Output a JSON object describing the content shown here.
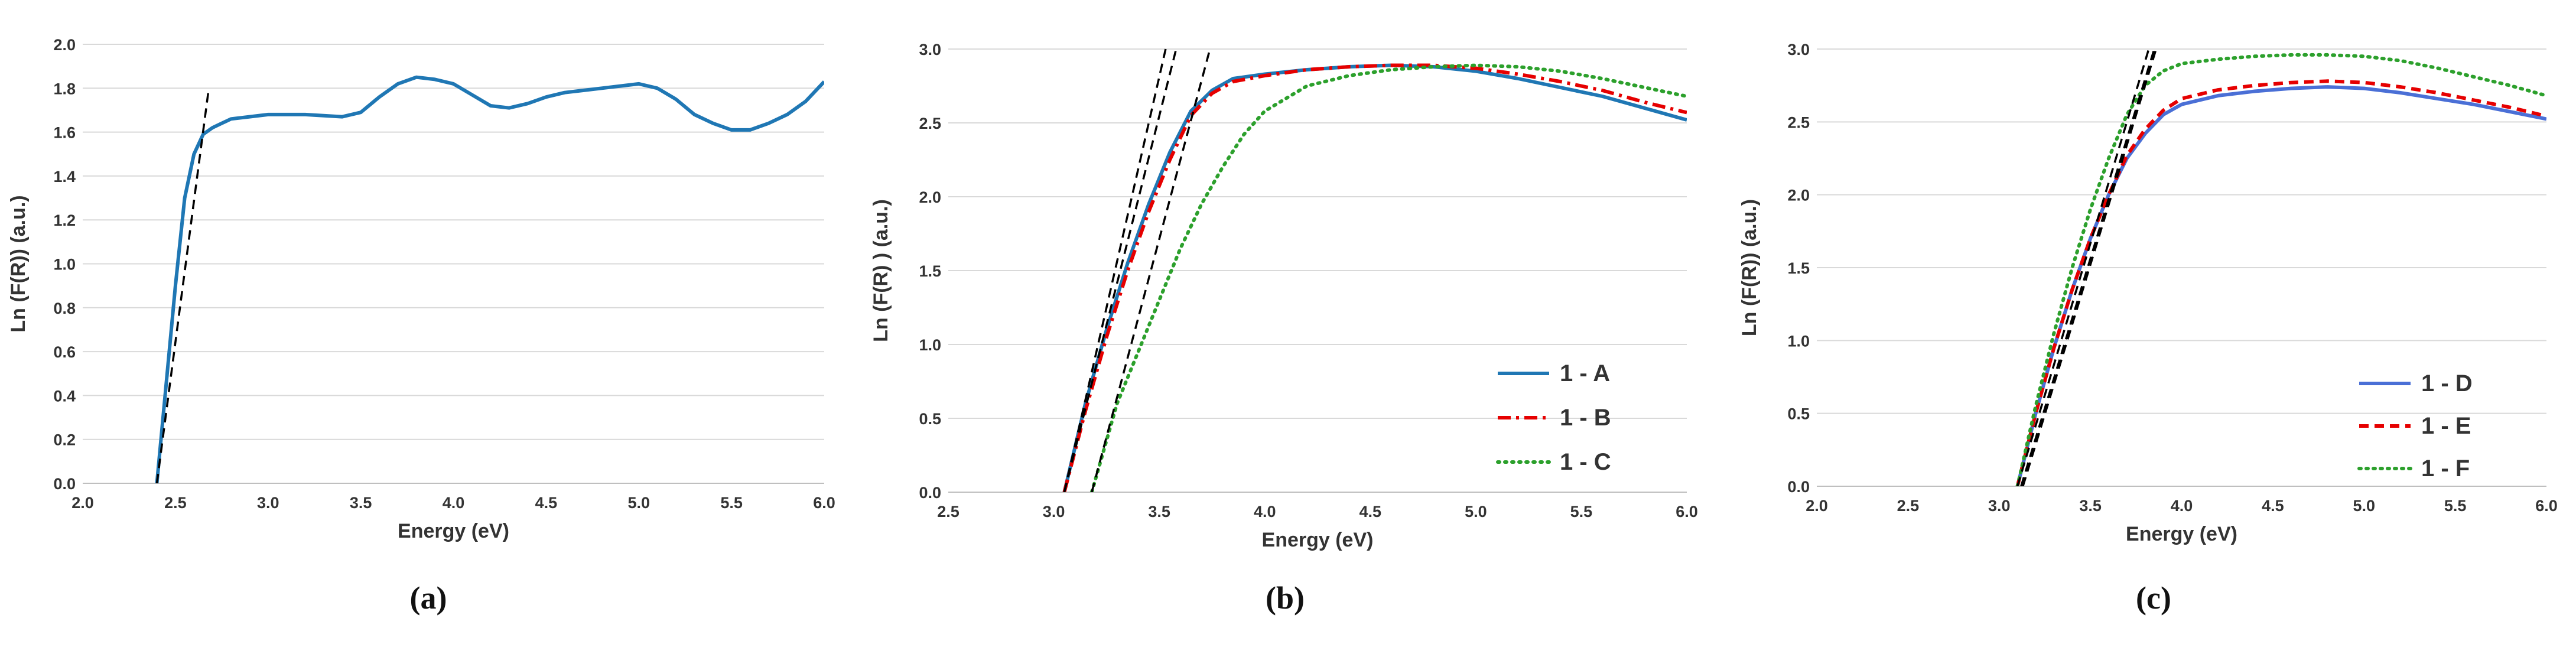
{
  "chart_data": [
    {
      "panel_label": "(a)",
      "type": "line",
      "xlabel": "Energy (eV)",
      "ylabel": "Ln (F(R)) (a.u.)",
      "xlim": [
        2.0,
        6.0
      ],
      "ylim": [
        0.0,
        2.0
      ],
      "xticks": [
        2.0,
        2.5,
        3.0,
        3.5,
        4.0,
        4.5,
        5.0,
        5.5,
        6.0
      ],
      "xtick_labels": [
        "2.0",
        "2.5",
        "3.0",
        "3.5",
        "4.0",
        "4.5",
        "5.0",
        "5.5",
        "6.0"
      ],
      "yticks": [
        0.0,
        0.2,
        0.4,
        0.6,
        0.8,
        1.0,
        1.2,
        1.4,
        1.6,
        1.8,
        2.0
      ],
      "ytick_labels": [
        "0.0",
        "0.2",
        "0.4",
        "0.6",
        "0.8",
        "1.0",
        "1.2",
        "1.4",
        "1.6",
        "1.8",
        "2.0"
      ],
      "legend": false,
      "series": [
        {
          "name": "sample",
          "color": "#1f77b4",
          "dash": "solid",
          "x": [
            2.4,
            2.45,
            2.5,
            2.55,
            2.6,
            2.65,
            2.7,
            2.75,
            2.8,
            2.9,
            3.0,
            3.2,
            3.4,
            3.5,
            3.6,
            3.7,
            3.8,
            3.9,
            4.0,
            4.1,
            4.2,
            4.3,
            4.4,
            4.5,
            4.6,
            4.7,
            4.8,
            4.9,
            5.0,
            5.1,
            5.2,
            5.3,
            5.4,
            5.5,
            5.6,
            5.7,
            5.8,
            5.9,
            6.0
          ],
          "y": [
            0.0,
            0.45,
            0.9,
            1.3,
            1.5,
            1.59,
            1.62,
            1.64,
            1.66,
            1.67,
            1.68,
            1.68,
            1.67,
            1.69,
            1.76,
            1.82,
            1.85,
            1.84,
            1.82,
            1.77,
            1.72,
            1.71,
            1.73,
            1.76,
            1.78,
            1.79,
            1.8,
            1.81,
            1.82,
            1.8,
            1.75,
            1.68,
            1.64,
            1.61,
            1.61,
            1.64,
            1.68,
            1.74,
            1.83
          ]
        },
        {
          "name": "tangent",
          "color": "#000000",
          "dash": "dashed",
          "x": [
            2.4,
            2.68
          ],
          "y": [
            0.0,
            1.8
          ]
        }
      ]
    },
    {
      "panel_label": "(b)",
      "type": "line",
      "xlabel": "Energy (eV)",
      "ylabel": "Ln (F(R) ) (a.u.)",
      "xlim": [
        2.5,
        6.0
      ],
      "ylim": [
        0.0,
        3.0
      ],
      "xticks": [
        2.5,
        3.0,
        3.5,
        4.0,
        4.5,
        5.0,
        5.5,
        6.0
      ],
      "xtick_labels": [
        "2.5",
        "3.0",
        "3.5",
        "4.0",
        "4.5",
        "5.0",
        "5.5",
        "6.0"
      ],
      "yticks": [
        0.0,
        0.5,
        1.0,
        1.5,
        2.0,
        2.5,
        3.0
      ],
      "ytick_labels": [
        "0.0",
        "0.5",
        "1.0",
        "1.5",
        "2.0",
        "2.5",
        "3.0"
      ],
      "legend": true,
      "legend_position": "bottom-right",
      "series": [
        {
          "name": "1 - A",
          "color": "#1f77b4",
          "dash": "solid",
          "x": [
            3.05,
            3.15,
            3.25,
            3.35,
            3.45,
            3.55,
            3.65,
            3.75,
            3.85,
            4.0,
            4.2,
            4.4,
            4.6,
            4.8,
            5.0,
            5.2,
            5.4,
            5.6,
            5.8,
            6.0
          ],
          "y": [
            0.0,
            0.6,
            1.1,
            1.55,
            1.95,
            2.3,
            2.58,
            2.72,
            2.8,
            2.83,
            2.86,
            2.88,
            2.89,
            2.88,
            2.85,
            2.8,
            2.74,
            2.68,
            2.6,
            2.52
          ]
        },
        {
          "name": "1 - B",
          "color": "#e60000",
          "dash": "dashdot",
          "x": [
            3.05,
            3.15,
            3.25,
            3.35,
            3.45,
            3.55,
            3.65,
            3.75,
            3.85,
            4.0,
            4.2,
            4.4,
            4.6,
            4.8,
            5.0,
            5.2,
            5.4,
            5.6,
            5.8,
            6.0
          ],
          "y": [
            0.0,
            0.55,
            1.05,
            1.5,
            1.9,
            2.25,
            2.55,
            2.7,
            2.78,
            2.82,
            2.86,
            2.88,
            2.89,
            2.89,
            2.87,
            2.83,
            2.78,
            2.72,
            2.64,
            2.57
          ]
        },
        {
          "name": "1 - C",
          "color": "#2ca02c",
          "dash": "dotted",
          "x": [
            3.18,
            3.3,
            3.4,
            3.5,
            3.6,
            3.7,
            3.8,
            3.9,
            4.0,
            4.2,
            4.4,
            4.6,
            4.8,
            5.0,
            5.2,
            5.4,
            5.6,
            5.8,
            6.0
          ],
          "y": [
            0.0,
            0.6,
            0.95,
            1.3,
            1.65,
            1.95,
            2.2,
            2.42,
            2.58,
            2.75,
            2.82,
            2.86,
            2.88,
            2.89,
            2.88,
            2.85,
            2.8,
            2.74,
            2.68
          ]
        },
        {
          "name": "tangent-1",
          "color": "#000000",
          "dash": "dashed",
          "x": [
            3.05,
            3.58
          ],
          "y": [
            0.0,
            3.0
          ]
        },
        {
          "name": "tangent-2",
          "color": "#000000",
          "dash": "dashed",
          "x": [
            3.05,
            3.53
          ],
          "y": [
            0.0,
            3.0
          ]
        },
        {
          "name": "tangent-3",
          "color": "#000000",
          "dash": "dashed",
          "x": [
            3.18,
            3.74
          ],
          "y": [
            0.0,
            3.0
          ]
        }
      ],
      "legend_series": [
        "1 - A",
        "1 - B",
        "1 - C"
      ]
    },
    {
      "panel_label": "(c)",
      "type": "line",
      "xlabel": "Energy (eV)",
      "ylabel": "Ln (F(R)) (a.u.)",
      "xlim": [
        2.0,
        6.0
      ],
      "ylim": [
        0.0,
        3.0
      ],
      "xticks": [
        2.0,
        2.5,
        3.0,
        3.5,
        4.0,
        4.5,
        5.0,
        5.5,
        6.0
      ],
      "xtick_labels": [
        "2.0",
        "2.5",
        "3.0",
        "3.5",
        "4.0",
        "4.5",
        "5.0",
        "5.5",
        "6.0"
      ],
      "yticks": [
        0.0,
        0.5,
        1.0,
        1.5,
        2.0,
        2.5,
        3.0
      ],
      "ytick_labels": [
        "0.0",
        "0.5",
        "1.0",
        "1.5",
        "2.0",
        "2.5",
        "3.0"
      ],
      "legend": true,
      "legend_position": "bottom-right",
      "series": [
        {
          "name": "1 - D",
          "color": "#4a6fd6",
          "dash": "solid",
          "x": [
            3.1,
            3.2,
            3.3,
            3.4,
            3.5,
            3.6,
            3.7,
            3.8,
            3.9,
            4.0,
            4.2,
            4.4,
            4.6,
            4.8,
            5.0,
            5.2,
            5.4,
            5.6,
            5.8,
            6.0
          ],
          "y": [
            0.0,
            0.5,
            0.95,
            1.35,
            1.7,
            2.0,
            2.25,
            2.42,
            2.55,
            2.62,
            2.68,
            2.71,
            2.73,
            2.74,
            2.73,
            2.7,
            2.66,
            2.62,
            2.57,
            2.52
          ]
        },
        {
          "name": "1 - E",
          "color": "#e60000",
          "dash": "dashed",
          "x": [
            3.1,
            3.2,
            3.3,
            3.4,
            3.5,
            3.6,
            3.7,
            3.8,
            3.9,
            4.0,
            4.2,
            4.4,
            4.6,
            4.8,
            5.0,
            5.2,
            5.4,
            5.6,
            5.8,
            6.0
          ],
          "y": [
            0.0,
            0.5,
            0.95,
            1.35,
            1.7,
            2.0,
            2.27,
            2.45,
            2.58,
            2.66,
            2.72,
            2.75,
            2.77,
            2.78,
            2.77,
            2.74,
            2.7,
            2.65,
            2.6,
            2.54
          ]
        },
        {
          "name": "1 - F",
          "color": "#2ca02c",
          "dash": "dotted",
          "x": [
            3.1,
            3.2,
            3.3,
            3.4,
            3.5,
            3.6,
            3.7,
            3.8,
            3.9,
            4.0,
            4.2,
            4.4,
            4.6,
            4.8,
            5.0,
            5.2,
            5.4,
            5.6,
            5.8,
            6.0
          ],
          "y": [
            0.0,
            0.55,
            1.05,
            1.5,
            1.9,
            2.25,
            2.55,
            2.75,
            2.85,
            2.9,
            2.93,
            2.95,
            2.96,
            2.96,
            2.95,
            2.92,
            2.87,
            2.81,
            2.75,
            2.68
          ]
        },
        {
          "name": "tangent-1",
          "color": "#000000",
          "dash": "dashed",
          "x": [
            3.1,
            3.82
          ],
          "y": [
            0.0,
            3.0
          ]
        },
        {
          "name": "tangent-2",
          "color": "#000000",
          "dash": "dashed",
          "x": [
            3.12,
            3.85
          ],
          "y": [
            0.0,
            3.0
          ]
        },
        {
          "name": "tangent-3",
          "color": "#000000",
          "dash": "dashed",
          "x": [
            3.13,
            3.86
          ],
          "y": [
            0.0,
            3.0
          ]
        }
      ],
      "legend_series": [
        "1 - D",
        "1 - E",
        "1 - F"
      ]
    }
  ]
}
